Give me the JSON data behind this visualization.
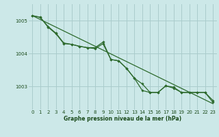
{
  "xlabel": "Graphe pression niveau de la mer (hPa)",
  "background_color": "#cce8e8",
  "grid_color": "#aacccc",
  "line_color": "#2d6a2d",
  "text_color": "#1a4a1a",
  "xlim": [
    -0.5,
    23.5
  ],
  "ylim": [
    1002.3,
    1005.5
  ],
  "yticks": [
    1003,
    1004,
    1005
  ],
  "xticks": [
    0,
    1,
    2,
    3,
    4,
    5,
    6,
    7,
    8,
    9,
    10,
    11,
    12,
    13,
    14,
    15,
    16,
    17,
    18,
    19,
    20,
    21,
    22,
    23
  ],
  "series1": [
    1005.15,
    1005.1,
    1004.8,
    1004.6,
    1004.3,
    1004.28,
    1004.22,
    1004.18,
    1004.15,
    1004.3,
    1003.82,
    1003.78,
    1003.55,
    1003.25,
    1002.88,
    1002.82,
    1002.82,
    1003.02,
    1002.95,
    1002.82,
    1002.82,
    1002.82,
    1002.82,
    1002.58
  ],
  "series2": [
    1005.15,
    1005.1,
    1004.82,
    1004.62,
    1004.32,
    1004.28,
    1004.22,
    1004.18,
    1004.18,
    1004.35,
    1003.82,
    1003.78,
    1003.55,
    1003.25,
    1003.08,
    1002.82,
    1002.82,
    1003.02,
    1002.98,
    1002.82,
    1002.82,
    1002.82,
    1002.82,
    1002.52
  ],
  "trend_x": [
    0,
    23
  ],
  "trend_y": [
    1005.15,
    1002.48
  ]
}
